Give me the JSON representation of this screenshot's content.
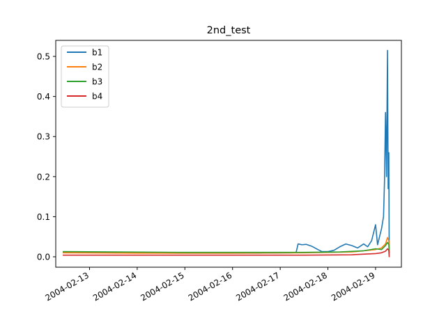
{
  "chart_data": {
    "type": "line",
    "title": "2nd_test",
    "xlabel": "",
    "ylabel": "",
    "x_axis_type": "date",
    "xlim": [
      "2004-02-12 07:00",
      "2004-02-19 13:00"
    ],
    "ylim": [
      -0.026,
      0.54
    ],
    "x_ticks": [
      "2004-02-13",
      "2004-02-14",
      "2004-02-15",
      "2004-02-16",
      "2004-02-17",
      "2004-02-18",
      "2004-02-19"
    ],
    "y_ticks": [
      "0.0",
      "0.1",
      "0.2",
      "0.3",
      "0.4",
      "0.5"
    ],
    "grid": false,
    "legend": {
      "placement": "top-left",
      "entries": [
        "b1",
        "b2",
        "b3",
        "b4"
      ]
    },
    "series": [
      {
        "name": "b1",
        "color": "#1f77b4",
        "points": [
          [
            "2004-02-12 10:32",
            0.011
          ],
          [
            "2004-02-13 12:00",
            0.01
          ],
          [
            "2004-02-15 00:00",
            0.009
          ],
          [
            "2004-02-16 12:00",
            0.009
          ],
          [
            "2004-02-17 06:00",
            0.01
          ],
          [
            "2004-02-17 08:00",
            0.011
          ],
          [
            "2004-02-17 09:00",
            0.032
          ],
          [
            "2004-02-17 11:00",
            0.03
          ],
          [
            "2004-02-17 13:00",
            0.031
          ],
          [
            "2004-02-17 16:00",
            0.026
          ],
          [
            "2004-02-17 19:00",
            0.018
          ],
          [
            "2004-02-17 21:00",
            0.013
          ],
          [
            "2004-02-18 00:00",
            0.013
          ],
          [
            "2004-02-18 03:00",
            0.016
          ],
          [
            "2004-02-18 06:00",
            0.025
          ],
          [
            "2004-02-18 09:00",
            0.032
          ],
          [
            "2004-02-18 12:00",
            0.028
          ],
          [
            "2004-02-18 15:00",
            0.022
          ],
          [
            "2004-02-18 18:00",
            0.032
          ],
          [
            "2004-02-18 20:00",
            0.025
          ],
          [
            "2004-02-18 22:00",
            0.04
          ],
          [
            "2004-02-19 00:00",
            0.08
          ],
          [
            "2004-02-19 01:00",
            0.03
          ],
          [
            "2004-02-19 02:00",
            0.05
          ],
          [
            "2004-02-19 03:00",
            0.07
          ],
          [
            "2004-02-19 04:00",
            0.1
          ],
          [
            "2004-02-19 04:30",
            0.19
          ],
          [
            "2004-02-19 05:00",
            0.36
          ],
          [
            "2004-02-19 05:30",
            0.2
          ],
          [
            "2004-02-19 06:00",
            0.515
          ],
          [
            "2004-02-19 06:20",
            0.17
          ],
          [
            "2004-02-19 06:40",
            0.26
          ],
          [
            "2004-02-19 06:52",
            0.01
          ]
        ]
      },
      {
        "name": "b2",
        "color": "#ff7f0e",
        "points": [
          [
            "2004-02-12 10:32",
            0.01
          ],
          [
            "2004-02-14 00:00",
            0.009
          ],
          [
            "2004-02-16 00:00",
            0.009
          ],
          [
            "2004-02-17 12:00",
            0.01
          ],
          [
            "2004-02-18 12:00",
            0.012
          ],
          [
            "2004-02-19 00:00",
            0.018
          ],
          [
            "2004-02-19 03:00",
            0.022
          ],
          [
            "2004-02-19 05:00",
            0.032
          ],
          [
            "2004-02-19 06:00",
            0.048
          ],
          [
            "2004-02-19 06:40",
            0.04
          ],
          [
            "2004-02-19 06:52",
            0.005
          ]
        ]
      },
      {
        "name": "b3",
        "color": "#2ca02c",
        "points": [
          [
            "2004-02-12 10:32",
            0.013
          ],
          [
            "2004-02-13 12:00",
            0.012
          ],
          [
            "2004-02-15 00:00",
            0.011
          ],
          [
            "2004-02-16 12:00",
            0.011
          ],
          [
            "2004-02-17 12:00",
            0.011
          ],
          [
            "2004-02-18 06:00",
            0.012
          ],
          [
            "2004-02-18 18:00",
            0.015
          ],
          [
            "2004-02-19 00:00",
            0.02
          ],
          [
            "2004-02-19 03:00",
            0.018
          ],
          [
            "2004-02-19 05:00",
            0.028
          ],
          [
            "2004-02-19 06:00",
            0.036
          ],
          [
            "2004-02-19 06:40",
            0.03
          ],
          [
            "2004-02-19 06:52",
            0.01
          ]
        ]
      },
      {
        "name": "b4",
        "color": "#d62728",
        "points": [
          [
            "2004-02-12 10:32",
            0.004
          ],
          [
            "2004-02-14 00:00",
            0.004
          ],
          [
            "2004-02-16 00:00",
            0.004
          ],
          [
            "2004-02-17 12:00",
            0.004
          ],
          [
            "2004-02-18 12:00",
            0.005
          ],
          [
            "2004-02-19 00:00",
            0.008
          ],
          [
            "2004-02-19 03:00",
            0.01
          ],
          [
            "2004-02-19 05:00",
            0.014
          ],
          [
            "2004-02-19 06:00",
            0.02
          ],
          [
            "2004-02-19 06:40",
            0.016
          ],
          [
            "2004-02-19 06:52",
            -0.001
          ]
        ]
      }
    ]
  }
}
